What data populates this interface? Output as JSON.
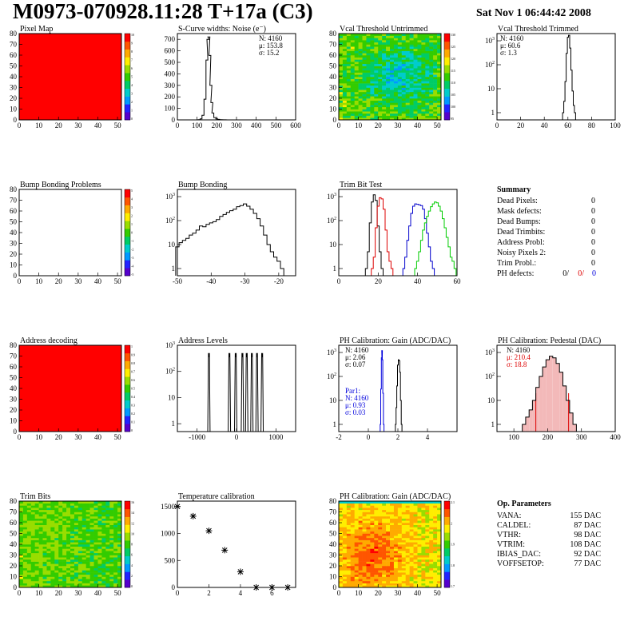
{
  "header": {
    "title": "M0973-070928.11:28 T+17a (C3)",
    "date": "Sat Nov  1 06:44:42 2008"
  },
  "colors": {
    "pixel_map": "#ff0000",
    "trim_series": [
      "#000000",
      "#dd0000",
      "#0000cc",
      "#00cc00"
    ],
    "blue": "#0000dd",
    "red": "#dd0000",
    "palette": [
      "#5500cc",
      "#2222ff",
      "#0099ff",
      "#00cccc",
      "#00cc66",
      "#33cc00",
      "#99dd00",
      "#ffee00",
      "#ffaa00",
      "#ff5500",
      "#ff0000"
    ]
  },
  "chart_data": [
    {
      "id": "pixel_map",
      "type": "heatmap",
      "title": "Pixel Map",
      "pattern": "uniform",
      "xlim": [
        0,
        52
      ],
      "ylim": [
        0,
        80
      ],
      "xticks": [
        0,
        10,
        20,
        30,
        40,
        50
      ],
      "yticks": [
        0,
        10,
        20,
        30,
        40,
        50,
        60,
        70,
        80
      ],
      "palette_ticks": [
        "10",
        "9",
        "8",
        "7",
        "6",
        "5",
        "4",
        "3",
        "2",
        "1",
        "0"
      ]
    },
    {
      "id": "scurve",
      "type": "histogram",
      "title": "S-Curve widths: Noise (e⁻)",
      "xlim": [
        0,
        600
      ],
      "ylim": [
        0,
        750
      ],
      "log": false,
      "xticks": [
        0,
        100,
        200,
        300,
        400,
        500,
        600
      ],
      "yticks": [
        0,
        100,
        200,
        300,
        400,
        500,
        600,
        700
      ],
      "stats": [
        "N: 4160",
        "μ: 153.8",
        "σ: 15.2"
      ],
      "x": [
        100,
        110,
        120,
        130,
        140,
        150,
        155,
        160,
        165,
        170,
        175,
        180,
        190,
        200,
        210,
        220,
        240,
        260
      ],
      "values": [
        0,
        2,
        8,
        40,
        180,
        520,
        700,
        720,
        560,
        300,
        150,
        60,
        20,
        8,
        4,
        2,
        1,
        0
      ]
    },
    {
      "id": "vcal_untrimmed",
      "type": "heatmap",
      "title": "Vcal Threshold Untrimmed",
      "pattern": "untrimmed",
      "xlim": [
        0,
        52
      ],
      "ylim": [
        0,
        80
      ],
      "xticks": [
        0,
        10,
        20,
        30,
        40,
        50
      ],
      "yticks": [
        0,
        10,
        20,
        30,
        40,
        50,
        60,
        70,
        80
      ],
      "palette_ticks": [
        "130",
        "125",
        "120",
        "115",
        "110",
        "105",
        "100",
        "95"
      ]
    },
    {
      "id": "vcal_trimmed",
      "type": "histogram",
      "title": "Vcal Threshold Trimmed",
      "xlim": [
        0,
        100
      ],
      "ylim": [
        0.5,
        2000
      ],
      "log": true,
      "xticks": [
        0,
        20,
        40,
        60,
        80,
        100
      ],
      "stats": [
        "N: 4160",
        "μ: 60.6",
        "σ:  1.3"
      ],
      "x": [
        56,
        57,
        58,
        59,
        60,
        61,
        62,
        63,
        64,
        65,
        66
      ],
      "values": [
        1,
        3,
        20,
        300,
        1400,
        1700,
        500,
        60,
        8,
        2,
        1
      ]
    },
    {
      "id": "bump_problems",
      "type": "heatmap",
      "title": "Bump Bonding Problems",
      "pattern": "empty",
      "xlim": [
        0,
        52
      ],
      "ylim": [
        0,
        80
      ],
      "xticks": [
        0,
        10,
        20,
        30,
        40,
        50
      ],
      "yticks": [
        0,
        10,
        20,
        30,
        40,
        50,
        60,
        70,
        80
      ],
      "palette_ticks": [
        "5",
        "4",
        "3",
        "2",
        "1",
        "0",
        "-1",
        "-2",
        "-3",
        "-4",
        "-5"
      ]
    },
    {
      "id": "bump_bonding",
      "type": "histogram",
      "title": "Bump Bonding",
      "xlim": [
        -50,
        -15
      ],
      "ylim": [
        0.5,
        2000
      ],
      "log": true,
      "xticks": [
        -50,
        -40,
        -30,
        -20
      ],
      "x": [
        -50,
        -49,
        -48,
        -47,
        -46,
        -45,
        -44,
        -43,
        -42,
        -41,
        -40,
        -39,
        -38,
        -37,
        -36,
        -35,
        -34,
        -33,
        -32,
        -31,
        -30,
        -29,
        -28,
        -27,
        -26,
        -25,
        -24,
        -23,
        -22,
        -21,
        -20,
        -19,
        -18
      ],
      "values": [
        8,
        12,
        15,
        18,
        25,
        30,
        40,
        60,
        55,
        70,
        80,
        90,
        110,
        150,
        180,
        220,
        260,
        300,
        380,
        420,
        500,
        400,
        300,
        200,
        120,
        60,
        25,
        10,
        5,
        3,
        2,
        1,
        0
      ]
    },
    {
      "id": "trim_bits_test",
      "type": "histogram",
      "title": "Trim Bit Test",
      "xlim": [
        0,
        60
      ],
      "ylim": [
        0.5,
        2000
      ],
      "log": true,
      "xticks": [
        0,
        20,
        40,
        60
      ],
      "series": [
        {
          "x": [
            14,
            15,
            16,
            17,
            18,
            19,
            20,
            21,
            22
          ],
          "values": [
            1,
            5,
            80,
            600,
            1200,
            700,
            60,
            5,
            1
          ]
        },
        {
          "x": [
            17,
            18,
            19,
            20,
            21,
            22,
            23,
            24,
            25,
            26,
            27
          ],
          "values": [
            1,
            3,
            50,
            400,
            900,
            800,
            300,
            40,
            5,
            2,
            1
          ]
        },
        {
          "x": [
            33,
            34,
            35,
            36,
            37,
            38,
            39,
            40,
            41,
            42,
            43,
            44,
            45,
            46,
            47,
            48
          ],
          "values": [
            1,
            3,
            15,
            60,
            200,
            400,
            500,
            480,
            450,
            420,
            300,
            120,
            30,
            8,
            2,
            1
          ]
        },
        {
          "x": [
            39,
            40,
            41,
            42,
            43,
            44,
            45,
            46,
            47,
            48,
            49,
            50,
            51,
            52,
            53,
            54,
            55,
            56,
            57,
            58,
            59
          ],
          "values": [
            1,
            2,
            5,
            15,
            40,
            80,
            150,
            250,
            380,
            500,
            600,
            550,
            400,
            250,
            120,
            50,
            20,
            8,
            3,
            2,
            1
          ]
        }
      ]
    },
    {
      "id": "address_decoding",
      "type": "heatmap",
      "title": "Address decoding",
      "pattern": "uniform",
      "xlim": [
        0,
        52
      ],
      "ylim": [
        0,
        80
      ],
      "xticks": [
        0,
        10,
        20,
        30,
        40,
        50
      ],
      "yticks": [
        0,
        10,
        20,
        30,
        40,
        50,
        60,
        70,
        80
      ],
      "palette_ticks": [
        "1",
        "0.9",
        "0.8",
        "0.7",
        "0.6",
        "0.5",
        "0.4",
        "0.3",
        "0.2",
        "0.1",
        "0"
      ]
    },
    {
      "id": "address_levels",
      "type": "histogram",
      "title": "Address Levels",
      "xlim": [
        -1500,
        1500
      ],
      "ylim": [
        0.5,
        1000
      ],
      "log": true,
      "xticks": [
        -1000,
        0,
        1000
      ],
      "x": [
        -700,
        -180,
        -20,
        150,
        260,
        390,
        520,
        650
      ],
      "values": [
        500,
        500,
        500,
        500,
        500,
        500,
        500,
        500
      ]
    },
    {
      "id": "ph_gain",
      "type": "histogram",
      "title": "PH Calibration: Gain (ADC/DAC)",
      "xlim": [
        -2,
        6
      ],
      "ylim": [
        0.5,
        2000
      ],
      "log": true,
      "xticks": [
        -2,
        0,
        2,
        4
      ],
      "stats": [
        "N: 4160",
        "μ: 2.06",
        "σ: 0.07"
      ],
      "stats2": [
        "Par1:",
        "N: 4160",
        "μ: 0.93",
        "σ: 0.03"
      ],
      "series": [
        {
          "x": [
            1.85,
            1.9,
            1.95,
            2.0,
            2.05,
            2.1,
            2.15,
            2.2,
            2.25
          ],
          "values": [
            1,
            5,
            40,
            300,
            500,
            450,
            150,
            10,
            1
          ]
        },
        {
          "x": [
            0.82,
            0.86,
            0.9,
            0.93,
            0.96,
            1.0,
            1.04
          ],
          "values": [
            1,
            30,
            600,
            1200,
            500,
            20,
            1
          ]
        }
      ]
    },
    {
      "id": "ph_pedestal",
      "type": "histogram",
      "title": "PH Calibration: Pedestal (DAC)",
      "xlim": [
        50,
        400
      ],
      "ylim": [
        0.5,
        2000
      ],
      "log": true,
      "xticks": [
        100,
        200,
        300,
        400
      ],
      "stats": [
        "N: 4160",
        "μ: 210.4",
        "σ: 18.8"
      ],
      "x": [
        130,
        140,
        150,
        160,
        170,
        180,
        190,
        200,
        210,
        220,
        230,
        240,
        250,
        260,
        270,
        280
      ],
      "values": [
        1,
        2,
        4,
        10,
        35,
        100,
        250,
        500,
        700,
        600,
        350,
        150,
        40,
        10,
        3,
        1
      ]
    },
    {
      "id": "trim_bits",
      "type": "heatmap",
      "title": "Trim Bits",
      "pattern": "trimbits",
      "xlim": [
        0,
        52
      ],
      "ylim": [
        0,
        80
      ],
      "xticks": [
        0,
        10,
        20,
        30,
        40,
        50
      ],
      "yticks": [
        0,
        10,
        20,
        30,
        40,
        50,
        60,
        70,
        80
      ],
      "palette_ticks": [
        "16",
        "14",
        "12",
        "10",
        "8",
        "6",
        "4",
        "2",
        "0"
      ]
    },
    {
      "id": "temperature",
      "type": "scatter",
      "title": "Temperature calibration",
      "xlim": [
        0,
        7.5
      ],
      "ylim": [
        0,
        1600
      ],
      "xticks": [
        0,
        2,
        4,
        6
      ],
      "yticks": [
        0,
        500,
        1000,
        1500
      ],
      "x": [
        0,
        1,
        2,
        3,
        4,
        5,
        6,
        7
      ],
      "values": [
        1500,
        1320,
        1050,
        690,
        290,
        0,
        0,
        0
      ]
    },
    {
      "id": "ph_gain_map",
      "type": "heatmap",
      "title": "PH Calibration: Gain (ADC/DAC)",
      "pattern": "gainmap",
      "xlim": [
        0,
        52
      ],
      "ylim": [
        0,
        80
      ],
      "xticks": [
        0,
        10,
        20,
        30,
        40,
        50
      ],
      "yticks": [
        0,
        10,
        20,
        30,
        40,
        50,
        60,
        70,
        80
      ],
      "palette_ticks": [
        "2.1",
        "2",
        "1.9",
        "1.8",
        "1.7"
      ]
    }
  ],
  "summary": {
    "title": "Summary",
    "rows": [
      {
        "label": "Dead Pixels:",
        "value": "0"
      },
      {
        "label": "Mask defects:",
        "value": "0"
      },
      {
        "label": "Dead Bumps:",
        "value": "0"
      },
      {
        "label": "Dead Trimbits:",
        "value": "0"
      },
      {
        "label": "Address Probl:",
        "value": "0"
      },
      {
        "label": "Noisy Pixels 2:",
        "value": "0"
      },
      {
        "label": "Trim Probl.:",
        "value": "0"
      }
    ],
    "ph_label": "PH defects:",
    "ph_values": [
      "0/",
      "0/",
      "0"
    ]
  },
  "op_params": {
    "title": "Op. Parameters",
    "rows": [
      {
        "label": "VANA:",
        "value": "155 DAC"
      },
      {
        "label": "CALDEL:",
        "value": "87 DAC"
      },
      {
        "label": "VTHR:",
        "value": "98 DAC"
      },
      {
        "label": "VTRIM:",
        "value": "108 DAC"
      },
      {
        "label": "IBIAS_DAC:",
        "value": "92 DAC"
      },
      {
        "label": "VOFFSETOP:",
        "value": "77 DAC"
      }
    ]
  }
}
